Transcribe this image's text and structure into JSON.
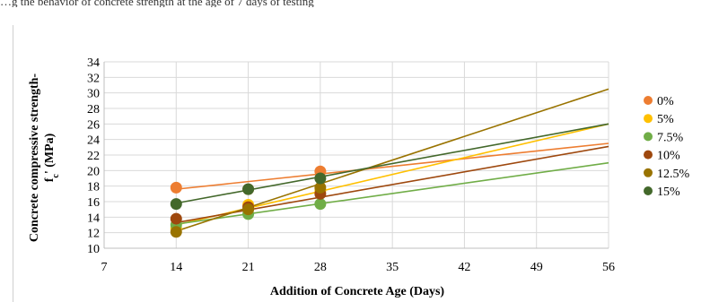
{
  "caption": "…g the behavior of concrete strength at the age of 7 days of testing",
  "chart_data": {
    "type": "scatter",
    "xlabel": "Addition of Concrete Age (Days)",
    "ylabel_line1": "Concrete compressive strength-",
    "ylabel_line2": "f",
    "ylabel_sub": "c",
    "ylabel_tail": "' (MPa)",
    "xlim": [
      7,
      56
    ],
    "ylim": [
      10,
      34
    ],
    "xticks": [
      "7",
      "14",
      "21",
      "28",
      "35",
      "42",
      "49",
      "56"
    ],
    "yticks": [
      "10",
      "12",
      "14",
      "16",
      "18",
      "20",
      "22",
      "24",
      "26",
      "28",
      "30",
      "32",
      "34"
    ],
    "grid": true,
    "legend_position": "right",
    "series": [
      {
        "name": "0%",
        "color": "#ED7D31",
        "x": [
          14,
          21,
          28
        ],
        "y": [
          17.8,
          17.6,
          19.9
        ],
        "trend": [
          [
            14,
            17.6
          ],
          [
            56,
            23.5
          ]
        ]
      },
      {
        "name": "5%",
        "color": "#FFC000",
        "x": [
          14,
          21,
          28
        ],
        "y": [
          12.6,
          15.6,
          17.4
        ],
        "trend": [
          [
            14,
            13.0
          ],
          [
            56,
            26.0
          ]
        ]
      },
      {
        "name": "7.5%",
        "color": "#70AD47",
        "x": [
          14,
          21,
          28
        ],
        "y": [
          13.0,
          14.4,
          15.7
        ],
        "trend": [
          [
            14,
            13.1
          ],
          [
            56,
            21.0
          ]
        ]
      },
      {
        "name": "10%",
        "color": "#9E480E",
        "x": [
          14,
          21,
          28
        ],
        "y": [
          13.8,
          15.3,
          17.0
        ],
        "trend": [
          [
            14,
            13.3
          ],
          [
            56,
            23.1
          ]
        ]
      },
      {
        "name": "12.5%",
        "color": "#997300",
        "x": [
          14,
          21,
          28
        ],
        "y": [
          12.1,
          15.0,
          17.8
        ],
        "trend": [
          [
            14,
            12.2
          ],
          [
            56,
            30.5
          ]
        ]
      },
      {
        "name": "15%",
        "color": "#43682B",
        "x": [
          14,
          21,
          28
        ],
        "y": [
          15.7,
          17.6,
          19.0
        ],
        "trend": [
          [
            14,
            15.8
          ],
          [
            56,
            26.0
          ]
        ]
      }
    ]
  }
}
